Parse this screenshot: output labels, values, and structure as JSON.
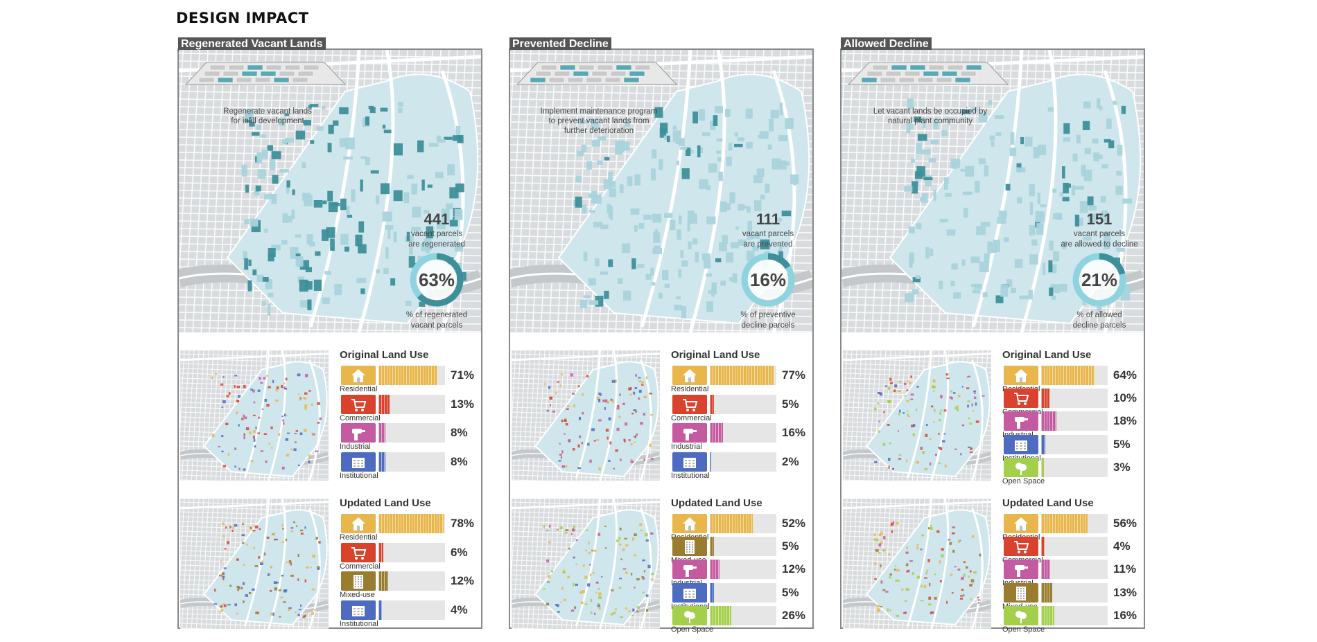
{
  "page": {
    "title": "DESIGN IMPACT"
  },
  "colors": {
    "Residential": "#e8b64a",
    "Commercial": "#d9432e",
    "Industrial": "#c45aa0",
    "Institutional": "#4d6bbf",
    "Mixed-use": "#9a7c2e",
    "Open Space": "#a3cf4a",
    "vacant_dark": "#3d8f9a",
    "vacant_light": "#b9dde4"
  },
  "panels": [
    {
      "label": "Regenerated Vacant Lands",
      "iso_caption": [
        "Regenerate vacant lands",
        "for infill development"
      ],
      "iso_icon": "infill-development-icon",
      "count": "441",
      "count_caption": [
        "vacant parcels",
        "are regenerated"
      ],
      "percent": "63%",
      "percent_value": 63,
      "percent_caption": [
        "% of regenerated",
        "vacant parcels"
      ],
      "original": {
        "heading": "Original Land Use",
        "rows": [
          {
            "label": "Residential",
            "pct": "71%",
            "value": 71,
            "icon": "house-icon"
          },
          {
            "label": "Commercial",
            "pct": "13%",
            "value": 13,
            "icon": "shopping-cart-icon"
          },
          {
            "label": "Industrial",
            "pct": "8%",
            "value": 8,
            "icon": "drill-icon"
          },
          {
            "label": "Institutional",
            "pct": "8%",
            "value": 8,
            "icon": "institution-icon"
          }
        ]
      },
      "updated": {
        "heading": "Updated Land Use",
        "rows": [
          {
            "label": "Residential",
            "pct": "78%",
            "value": 78,
            "icon": "house-icon"
          },
          {
            "label": "Commercial",
            "pct": "6%",
            "value": 6,
            "icon": "shopping-cart-icon"
          },
          {
            "label": "Mixed-use",
            "pct": "12%",
            "value": 12,
            "icon": "building-icon"
          },
          {
            "label": "Institutional",
            "pct": "4%",
            "value": 4,
            "icon": "institution-icon"
          }
        ]
      }
    },
    {
      "label": "Prevented Decline",
      "iso_caption": [
        "Implement maintenance program",
        "to prevent vacant lands from",
        "further deterioration"
      ],
      "iso_icon": "maintenance-worker-icon",
      "count": "111",
      "count_caption": [
        "vacant parcels",
        "are prevented"
      ],
      "percent": "16%",
      "percent_value": 16,
      "percent_caption": [
        "% of preventive",
        "decline parcels"
      ],
      "original": {
        "heading": "Original Land Use",
        "rows": [
          {
            "label": "Residential",
            "pct": "77%",
            "value": 77,
            "icon": "house-icon"
          },
          {
            "label": "Commercial",
            "pct": "5%",
            "value": 5,
            "icon": "shopping-cart-icon"
          },
          {
            "label": "Industrial",
            "pct": "16%",
            "value": 16,
            "icon": "drill-icon"
          },
          {
            "label": "Institutional",
            "pct": "2%",
            "value": 2,
            "icon": "institution-icon"
          }
        ]
      },
      "updated": {
        "heading": "Updated Land Use",
        "rows": [
          {
            "label": "Residential",
            "pct": "52%",
            "value": 52,
            "icon": "house-icon"
          },
          {
            "label": "Mixed-use",
            "pct": "5%",
            "value": 5,
            "icon": "building-icon"
          },
          {
            "label": "Industrial",
            "pct": "12%",
            "value": 12,
            "icon": "drill-icon"
          },
          {
            "label": "Institutional",
            "pct": "5%",
            "value": 5,
            "icon": "institution-icon"
          },
          {
            "label": "Open Space",
            "pct": "26%",
            "value": 26,
            "icon": "tree-icon"
          }
        ]
      }
    },
    {
      "label": "Allowed Decline",
      "iso_caption": [
        "Let vacant lands be occupied by",
        "natural plant community"
      ],
      "iso_icon": "trees-icon",
      "count": "151",
      "count_caption": [
        "vacant parcels",
        "are allowed to decline"
      ],
      "percent": "21%",
      "percent_value": 21,
      "percent_caption": [
        "% of allowed",
        "decline parcels"
      ],
      "original": {
        "heading": "Original Land Use",
        "rows": [
          {
            "label": "Residential",
            "pct": "64%",
            "value": 64,
            "icon": "house-icon"
          },
          {
            "label": "Commercial",
            "pct": "10%",
            "value": 10,
            "icon": "shopping-cart-icon"
          },
          {
            "label": "Industrial",
            "pct": "18%",
            "value": 18,
            "icon": "drill-icon"
          },
          {
            "label": "Institutional",
            "pct": "5%",
            "value": 5,
            "icon": "institution-icon"
          },
          {
            "label": "Open Space",
            "pct": "3%",
            "value": 3,
            "icon": "tree-icon"
          }
        ]
      },
      "updated": {
        "heading": "Updated Land Use",
        "rows": [
          {
            "label": "Residential",
            "pct": "56%",
            "value": 56,
            "icon": "house-icon"
          },
          {
            "label": "Commercial",
            "pct": "4%",
            "value": 4,
            "icon": "shopping-cart-icon"
          },
          {
            "label": "Industrial",
            "pct": "11%",
            "value": 11,
            "icon": "drill-icon"
          },
          {
            "label": "Mixed-use",
            "pct": "13%",
            "value": 13,
            "icon": "building-icon"
          },
          {
            "label": "Open Space",
            "pct": "16%",
            "value": 16,
            "icon": "tree-icon"
          }
        ]
      }
    }
  ]
}
